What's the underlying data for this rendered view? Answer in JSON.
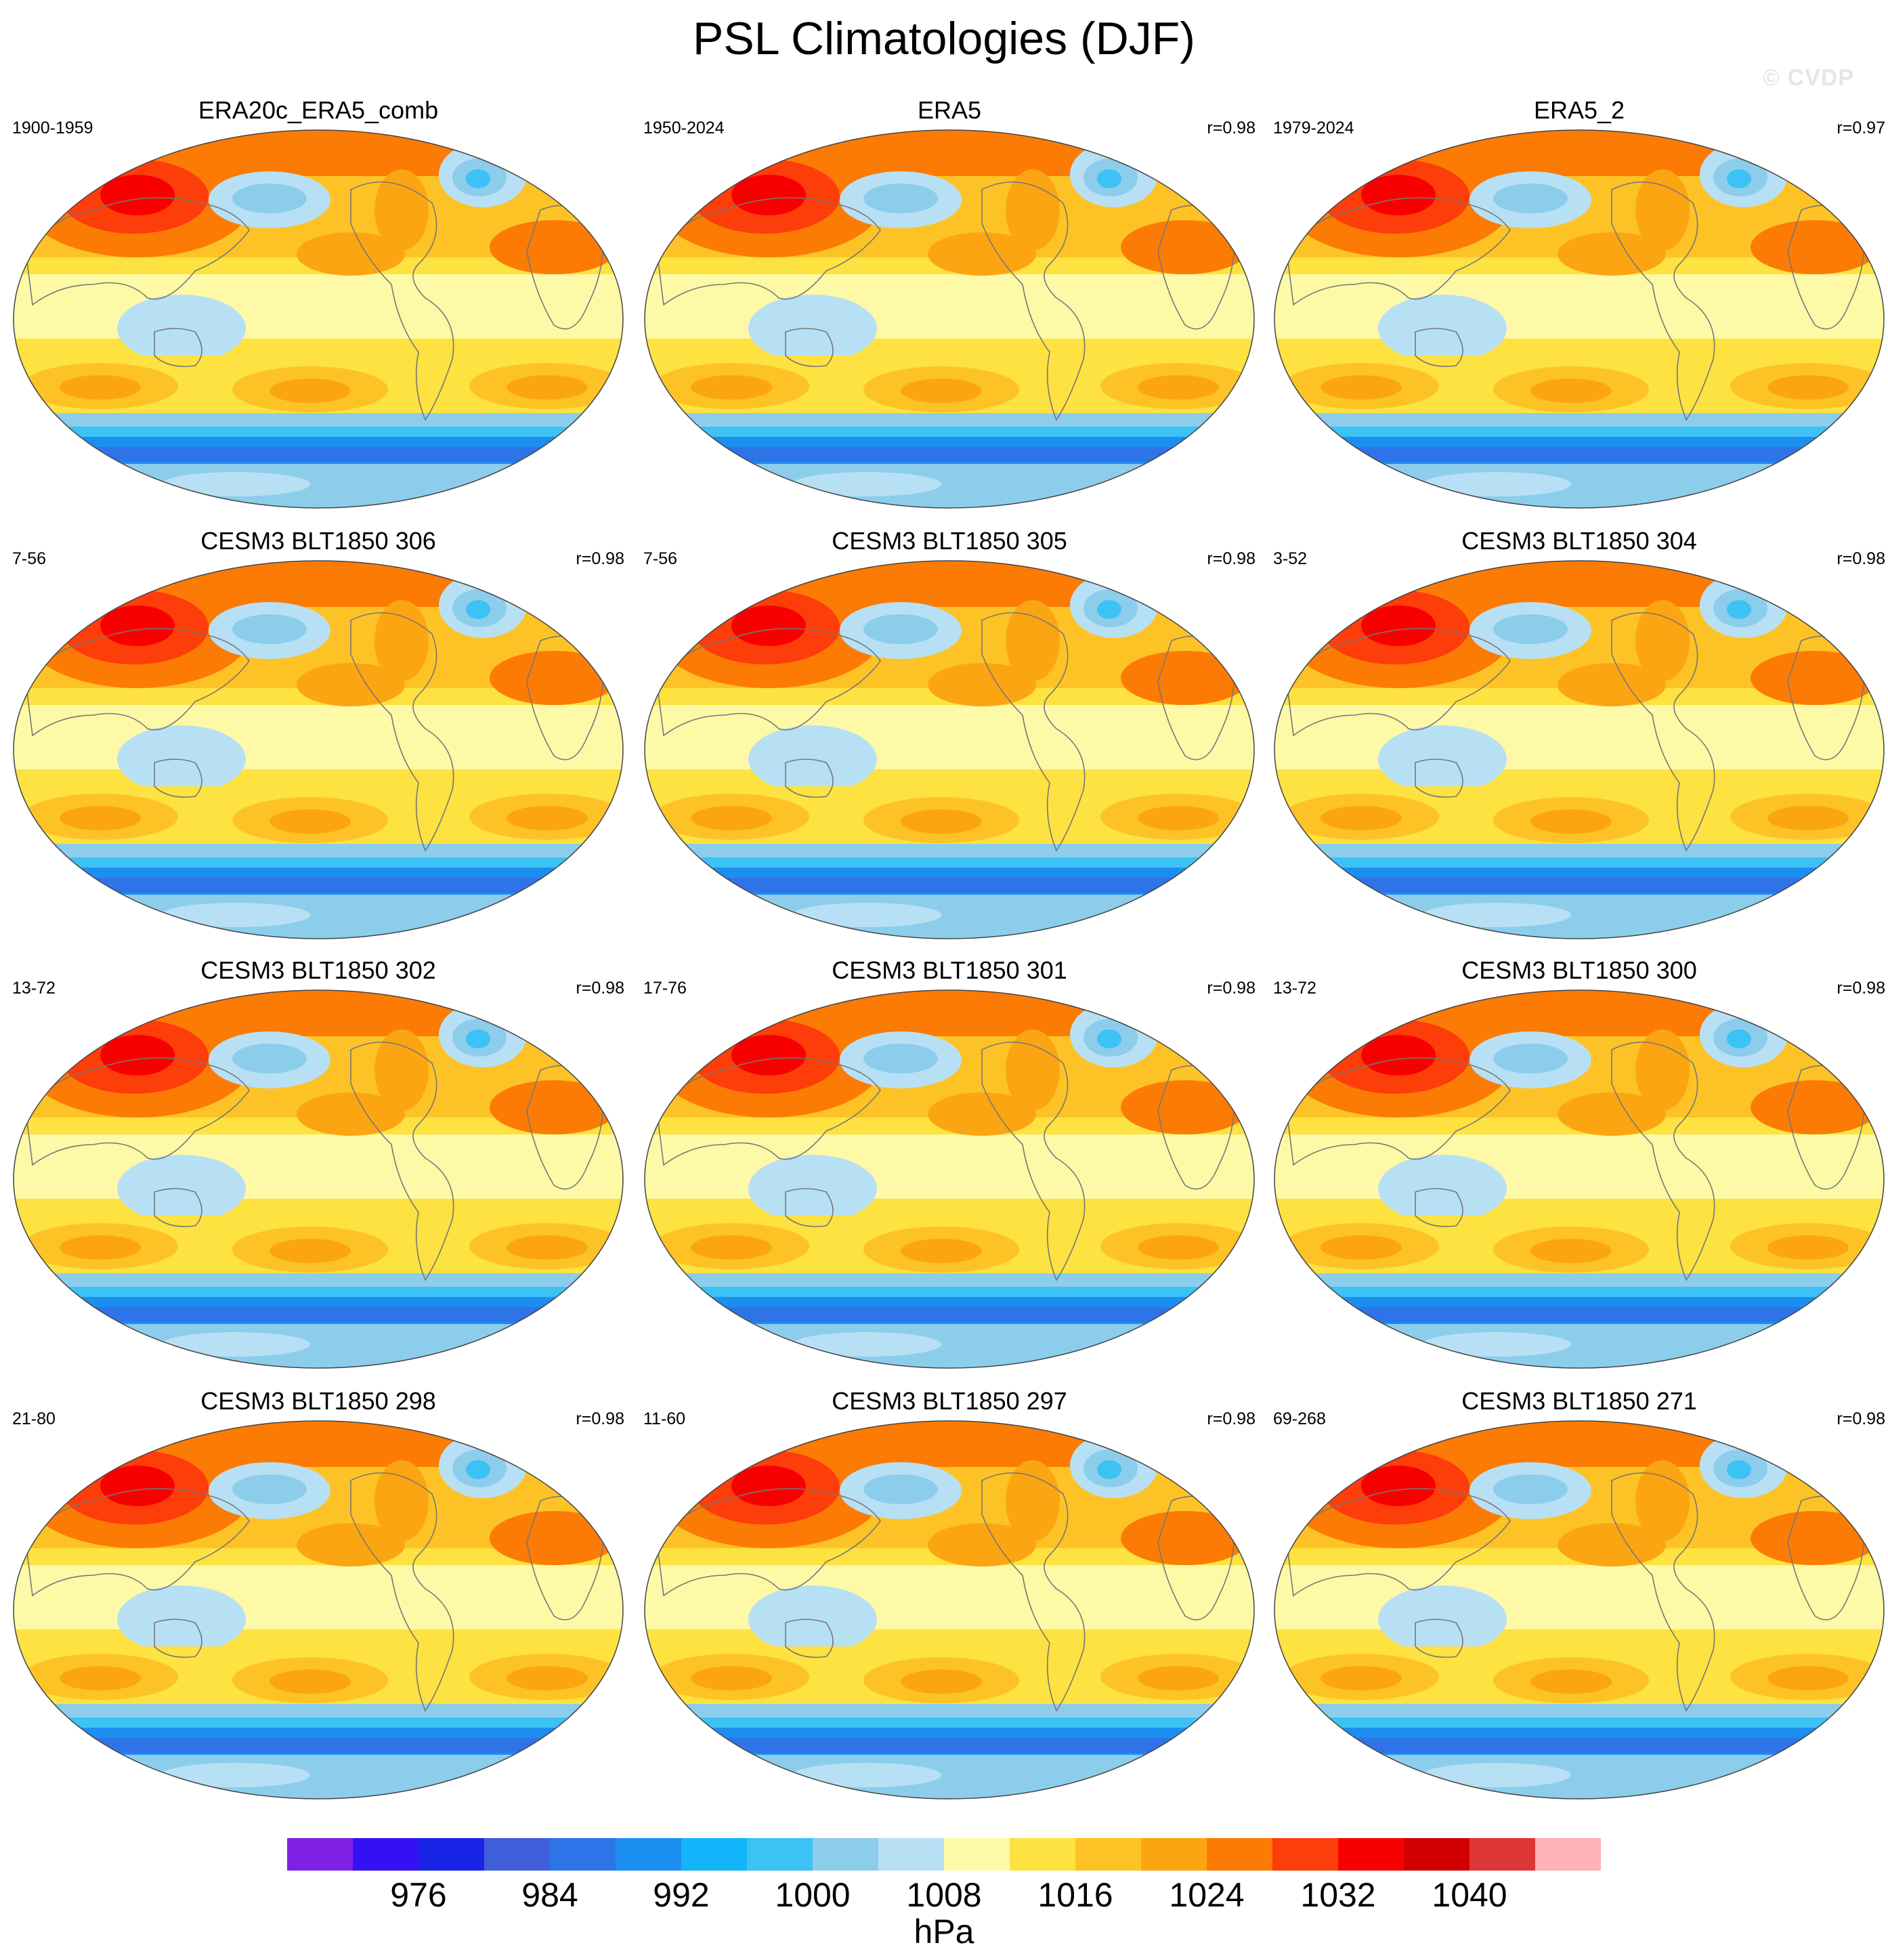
{
  "figure": {
    "title": "PSL Climatologies (DJF)",
    "watermark": "© CVDP"
  },
  "panels": [
    {
      "name": "ERA20c_ERA5_comb",
      "years": "1900-1959",
      "corr": ""
    },
    {
      "name": "ERA5",
      "years": "1950-2024",
      "corr": "r=0.98"
    },
    {
      "name": "ERA5_2",
      "years": "1979-2024",
      "corr": "r=0.97"
    },
    {
      "name": "CESM3 BLT1850 306",
      "years": "7-56",
      "corr": "r=0.98"
    },
    {
      "name": "CESM3 BLT1850 305",
      "years": "7-56",
      "corr": "r=0.98"
    },
    {
      "name": "CESM3 BLT1850 304",
      "years": "3-52",
      "corr": "r=0.98"
    },
    {
      "name": "CESM3 BLT1850 302",
      "years": "13-72",
      "corr": "r=0.98"
    },
    {
      "name": "CESM3 BLT1850 301",
      "years": "17-76",
      "corr": "r=0.98"
    },
    {
      "name": "CESM3 BLT1850 300",
      "years": "13-72",
      "corr": "r=0.98"
    },
    {
      "name": "CESM3 BLT1850 298",
      "years": "21-80",
      "corr": "r=0.98"
    },
    {
      "name": "CESM3 BLT1850 297",
      "years": "11-60",
      "corr": "r=0.98"
    },
    {
      "name": "CESM3 BLT1850 271",
      "years": "69-268",
      "corr": "r=0.98"
    }
  ],
  "colorbar": {
    "units": "hPa",
    "colors": [
      "#7f22e6",
      "#3311f2",
      "#1a24e6",
      "#3f5fdb",
      "#2e74e8",
      "#1c8ef0",
      "#12b4fa",
      "#3cc2f5",
      "#8ccdec",
      "#b8e0f5",
      "#fef9a7",
      "#fde241",
      "#fdc326",
      "#fca512",
      "#fc7b05",
      "#fd3d0a",
      "#f90000",
      "#d00000",
      "#dc3636",
      "#ffb3b6"
    ],
    "tick_labels": [
      "976",
      "984",
      "992",
      "1000",
      "1008",
      "1016",
      "1024",
      "1032",
      "1040"
    ]
  },
  "map_legend": {
    "ridge_color": "#fc7b05",
    "core_color": "#f90000",
    "southern_color": "#1c8ef0",
    "coast_color": "#777777",
    "background_color": "#fde241"
  }
}
